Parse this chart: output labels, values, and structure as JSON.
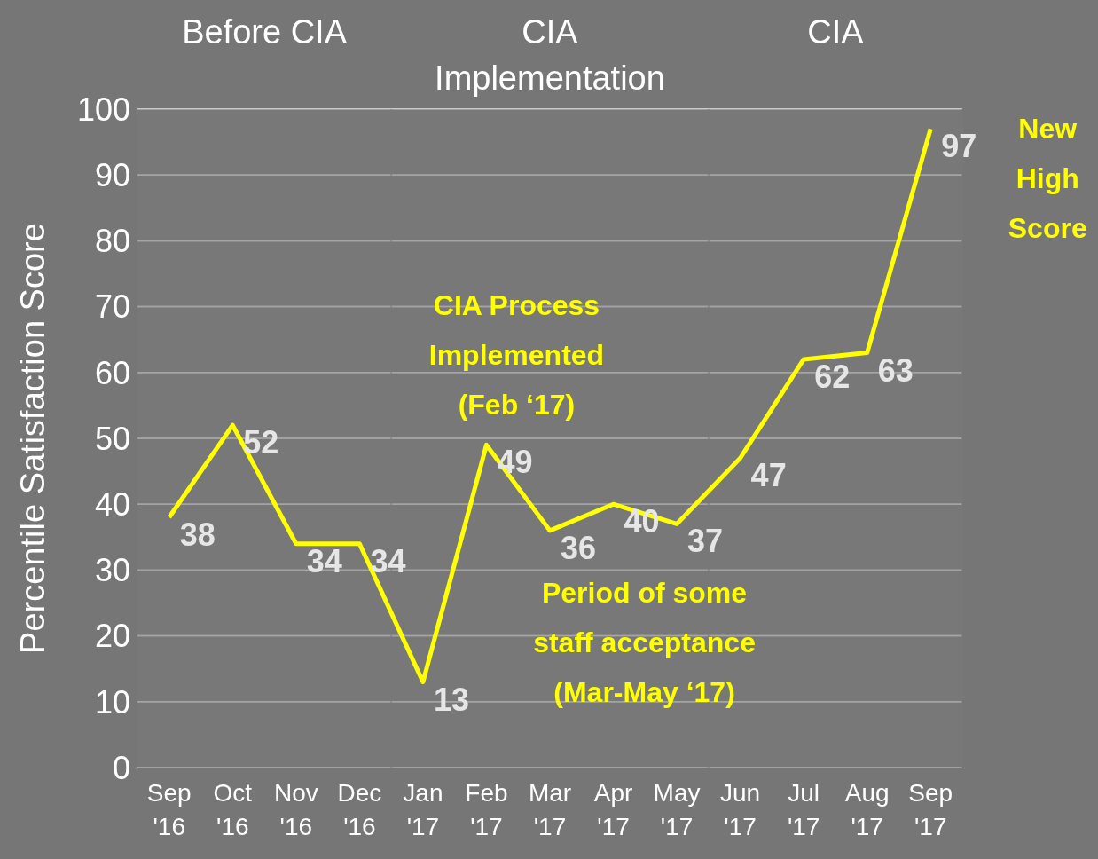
{
  "chart_data": {
    "type": "line",
    "ylabel": "Percentile Satisfaction Score",
    "categories": [
      "Sep '16",
      "Oct '16",
      "Nov '16",
      "Dec '16",
      "Jan '17",
      "Feb '17",
      "Mar '17",
      "Apr '17",
      "May '17",
      "Jun '17",
      "Jul '17",
      "Aug '17",
      "Sep '17"
    ],
    "series": [
      {
        "color": "#ffff00",
        "values": [
          38,
          52,
          34,
          34,
          13,
          49,
          36,
          40,
          37,
          47,
          62,
          63,
          97
        ]
      }
    ],
    "data_labels": true,
    "ylim": [
      0,
      100
    ],
    "yticks": [
      0,
      10,
      20,
      30,
      40,
      50,
      60,
      70,
      80,
      90,
      100
    ],
    "grid": "y",
    "marker": "none",
    "bands": [
      {
        "axis": "x",
        "from": "Sep '16",
        "to": "Dec '16",
        "label": "Before CIA",
        "color": "#7a7a7a"
      },
      {
        "axis": "x",
        "from": "Jan '17",
        "to": "May '17",
        "label": "CIA Implementation",
        "color": "#7a7a7a"
      },
      {
        "axis": "x",
        "from": "Jun '17",
        "to": "Sep '17",
        "label": "CIA",
        "color": "#7a7a7a"
      }
    ],
    "annotations": [
      {
        "text": "CIA Process Implemented (Feb ‘17)",
        "x": "Feb '17",
        "y": 49
      },
      "Period of some staff acceptance (Mar-May ‘17)",
      {
        "text": "New High Score",
        "x": "Sep '17",
        "y": 97
      }
    ]
  }
}
